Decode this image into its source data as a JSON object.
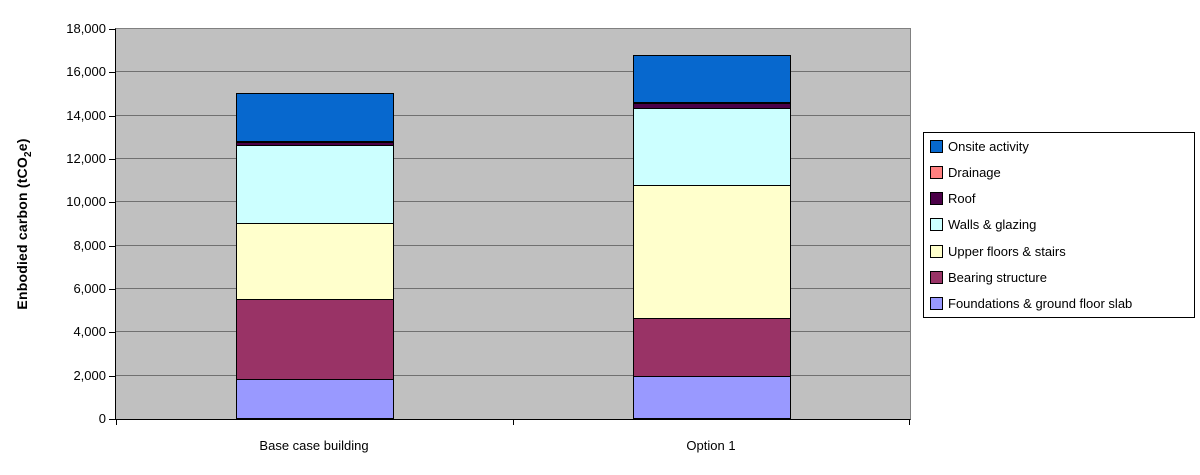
{
  "chart_data": {
    "type": "bar",
    "stacked": true,
    "title": "",
    "ylabel": "Enbodied carbon (tCO₂e)",
    "ylabel_parts": {
      "pre": "Enbodied carbon (tCO",
      "sub": "2",
      "post": "e)"
    },
    "categories": [
      "Base case building",
      "Option 1"
    ],
    "series": [
      {
        "name": "Foundations & ground floor slab",
        "color": "#9999FF",
        "values": [
          1800,
          1950
        ]
      },
      {
        "name": "Bearing structure",
        "color": "#993366",
        "values": [
          3700,
          2650
        ]
      },
      {
        "name": "Upper floors & stairs",
        "color": "#FFFFCC",
        "values": [
          3500,
          6150
        ]
      },
      {
        "name": "Walls & glazing",
        "color": "#CCFFFF",
        "values": [
          3600,
          3550
        ]
      },
      {
        "name": "Roof",
        "color": "#4B0048",
        "values": [
          150,
          250
        ]
      },
      {
        "name": "Drainage",
        "color": "#FF8080",
        "values": [
          50,
          50
        ]
      },
      {
        "name": "Onsite activity",
        "color": "#0768CE",
        "values": [
          2200,
          2150
        ]
      }
    ],
    "totals": [
      15000,
      16750
    ],
    "ylim": [
      0,
      18000
    ],
    "ytick_step": 2000,
    "ytick_labels": [
      "0",
      "2,000",
      "4,000",
      "6,000",
      "8,000",
      "10,000",
      "12,000",
      "14,000",
      "16,000",
      "18,000"
    ],
    "legend_position": "right",
    "legend_order_top_to_bottom": [
      "Onsite activity",
      "Drainage",
      "Roof",
      "Walls & glazing",
      "Upper floors & stairs",
      "Bearing structure",
      "Foundations & ground floor slab"
    ],
    "grid": true,
    "plot_background": "#C0C0C0",
    "gridline_color": "#707070",
    "axis_color": "#000000"
  }
}
